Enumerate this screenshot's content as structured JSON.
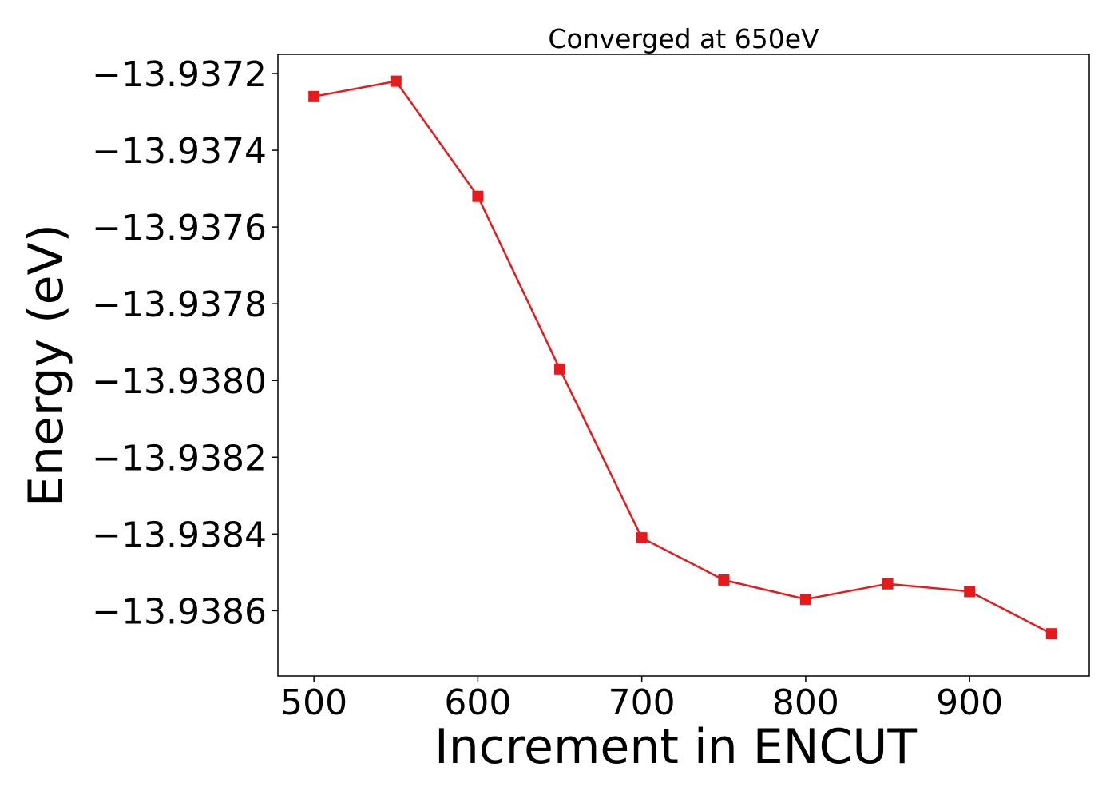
{
  "chart_data": {
    "type": "line",
    "title": "Converged at 650eV",
    "xlabel": "Increment in ENCUT",
    "ylabel": "Energy (eV)",
    "xlim": [
      478,
      973
    ],
    "ylim": [
      -13.93877,
      -13.93715
    ],
    "x_ticks": [
      500,
      600,
      700,
      800,
      900
    ],
    "x_tick_labels": [
      "500",
      "600",
      "700",
      "800",
      "900"
    ],
    "y_ticks": [
      -13.9372,
      -13.9374,
      -13.9376,
      -13.9378,
      -13.938,
      -13.9382,
      -13.9384,
      -13.9386
    ],
    "y_tick_labels": [
      "−13.9372",
      "−13.9374",
      "−13.9376",
      "−13.9378",
      "−13.9380",
      "−13.9382",
      "−13.9384",
      "−13.9386"
    ],
    "grid": false,
    "series": [
      {
        "color": "#e41a1c",
        "marker": "square",
        "x": [
          500,
          550,
          600,
          650,
          700,
          750,
          800,
          850,
          900,
          950
        ],
        "y": [
          -13.93726,
          -13.93722,
          -13.93752,
          -13.93797,
          -13.93841,
          -13.93852,
          -13.93857,
          -13.93853,
          -13.93855,
          -13.93866
        ]
      }
    ]
  }
}
